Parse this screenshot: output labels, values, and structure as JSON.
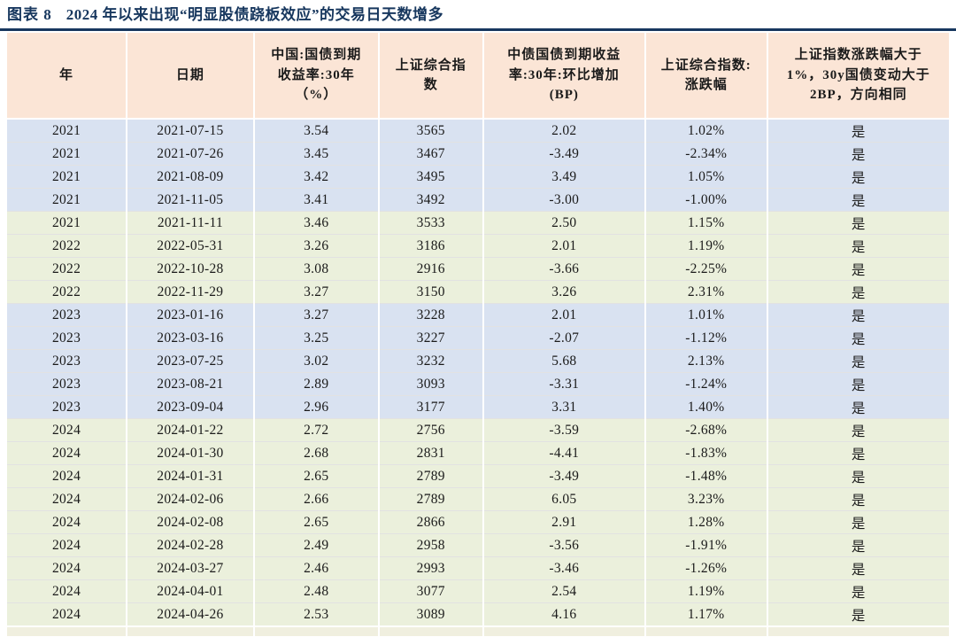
{
  "title": {
    "figure_label": "图表 8",
    "text": "2024 年以来出现“明显股债跷板效应”的交易日天数增多"
  },
  "colors": {
    "title_navy": "#17375e",
    "header_bg": "#fbe5d6",
    "row_blue": "#d9e2f1",
    "row_green": "#ebf0dc",
    "text": "#1a1a1a"
  },
  "table": {
    "columns": [
      {
        "label": "年"
      },
      {
        "label": "日期"
      },
      {
        "label": "中国:国债到期\n收益率:30年\n（%）"
      },
      {
        "label": "上证综合指\n数"
      },
      {
        "label": "中债国债到期收益\n率:30年:环比增加\n(BP)"
      },
      {
        "label": "上证综合指数:\n涨跌幅"
      },
      {
        "label": "上证指数涨跌幅大于\n1%，30y国债变动大于\n2BP，方向相同"
      }
    ],
    "rows": [
      {
        "tone": "blue",
        "cells": [
          "2021",
          "2021-07-15",
          "3.54",
          "3565",
          "2.02",
          "1.02%",
          "是"
        ]
      },
      {
        "tone": "blue",
        "cells": [
          "2021",
          "2021-07-26",
          "3.45",
          "3467",
          "-3.49",
          "-2.34%",
          "是"
        ]
      },
      {
        "tone": "blue",
        "cells": [
          "2021",
          "2021-08-09",
          "3.42",
          "3495",
          "3.49",
          "1.05%",
          "是"
        ]
      },
      {
        "tone": "blue",
        "cells": [
          "2021",
          "2021-11-05",
          "3.41",
          "3492",
          "-3.00",
          "-1.00%",
          "是"
        ]
      },
      {
        "tone": "green",
        "cells": [
          "2021",
          "2021-11-11",
          "3.46",
          "3533",
          "2.50",
          "1.15%",
          "是"
        ]
      },
      {
        "tone": "green",
        "cells": [
          "2022",
          "2022-05-31",
          "3.26",
          "3186",
          "2.01",
          "1.19%",
          "是"
        ]
      },
      {
        "tone": "green",
        "cells": [
          "2022",
          "2022-10-28",
          "3.08",
          "2916",
          "-3.66",
          "-2.25%",
          "是"
        ]
      },
      {
        "tone": "green",
        "cells": [
          "2022",
          "2022-11-29",
          "3.27",
          "3150",
          "3.26",
          "2.31%",
          "是"
        ]
      },
      {
        "tone": "blue",
        "cells": [
          "2023",
          "2023-01-16",
          "3.27",
          "3228",
          "2.01",
          "1.01%",
          "是"
        ]
      },
      {
        "tone": "blue",
        "cells": [
          "2023",
          "2023-03-16",
          "3.25",
          "3227",
          "-2.07",
          "-1.12%",
          "是"
        ]
      },
      {
        "tone": "blue",
        "cells": [
          "2023",
          "2023-07-25",
          "3.02",
          "3232",
          "5.68",
          "2.13%",
          "是"
        ]
      },
      {
        "tone": "blue",
        "cells": [
          "2023",
          "2023-08-21",
          "2.89",
          "3093",
          "-3.31",
          "-1.24%",
          "是"
        ]
      },
      {
        "tone": "blue",
        "cells": [
          "2023",
          "2023-09-04",
          "2.96",
          "3177",
          "3.31",
          "1.40%",
          "是"
        ]
      },
      {
        "tone": "green",
        "cells": [
          "2024",
          "2024-01-22",
          "2.72",
          "2756",
          "-3.59",
          "-2.68%",
          "是"
        ]
      },
      {
        "tone": "green",
        "cells": [
          "2024",
          "2024-01-30",
          "2.68",
          "2831",
          "-4.41",
          "-1.83%",
          "是"
        ]
      },
      {
        "tone": "green",
        "cells": [
          "2024",
          "2024-01-31",
          "2.65",
          "2789",
          "-3.49",
          "-1.48%",
          "是"
        ]
      },
      {
        "tone": "green",
        "cells": [
          "2024",
          "2024-02-06",
          "2.66",
          "2789",
          "6.05",
          "3.23%",
          "是"
        ]
      },
      {
        "tone": "green",
        "cells": [
          "2024",
          "2024-02-08",
          "2.65",
          "2866",
          "2.91",
          "1.28%",
          "是"
        ]
      },
      {
        "tone": "green",
        "cells": [
          "2024",
          "2024-02-28",
          "2.49",
          "2958",
          "-3.56",
          "-1.91%",
          "是"
        ]
      },
      {
        "tone": "green",
        "cells": [
          "2024",
          "2024-03-27",
          "2.46",
          "2993",
          "-3.46",
          "-1.26%",
          "是"
        ]
      },
      {
        "tone": "green",
        "cells": [
          "2024",
          "2024-04-01",
          "2.48",
          "3077",
          "2.54",
          "1.19%",
          "是"
        ]
      },
      {
        "tone": "green",
        "cells": [
          "2024",
          "2024-04-26",
          "2.53",
          "3089",
          "4.16",
          "1.17%",
          "是"
        ]
      }
    ]
  },
  "chart_data": {
    "type": "table",
    "title": "图表 8 2024 年以来出现“明显股债跷板效应”的交易日天数增多",
    "columns": [
      "年",
      "日期",
      "中国:国债到期收益率:30年（%）",
      "上证综合指数",
      "中债国债到期收益率:30年:环比增加(BP)",
      "上证综合指数:涨跌幅",
      "上证指数涨跌幅大于1%，30y国债变动大于2BP，方向相同"
    ],
    "rows": [
      [
        "2021",
        "2021-07-15",
        3.54,
        3565,
        2.02,
        "1.02%",
        "是"
      ],
      [
        "2021",
        "2021-07-26",
        3.45,
        3467,
        -3.49,
        "-2.34%",
        "是"
      ],
      [
        "2021",
        "2021-08-09",
        3.42,
        3495,
        3.49,
        "1.05%",
        "是"
      ],
      [
        "2021",
        "2021-11-05",
        3.41,
        3492,
        -3.0,
        "-1.00%",
        "是"
      ],
      [
        "2021",
        "2021-11-11",
        3.46,
        3533,
        2.5,
        "1.15%",
        "是"
      ],
      [
        "2022",
        "2022-05-31",
        3.26,
        3186,
        2.01,
        "1.19%",
        "是"
      ],
      [
        "2022",
        "2022-10-28",
        3.08,
        2916,
        -3.66,
        "-2.25%",
        "是"
      ],
      [
        "2022",
        "2022-11-29",
        3.27,
        3150,
        3.26,
        "2.31%",
        "是"
      ],
      [
        "2023",
        "2023-01-16",
        3.27,
        3228,
        2.01,
        "1.01%",
        "是"
      ],
      [
        "2023",
        "2023-03-16",
        3.25,
        3227,
        -2.07,
        "-1.12%",
        "是"
      ],
      [
        "2023",
        "2023-07-25",
        3.02,
        3232,
        5.68,
        "2.13%",
        "是"
      ],
      [
        "2023",
        "2023-08-21",
        2.89,
        3093,
        -3.31,
        "-1.24%",
        "是"
      ],
      [
        "2023",
        "2023-09-04",
        2.96,
        3177,
        3.31,
        "1.40%",
        "是"
      ],
      [
        "2024",
        "2024-01-22",
        2.72,
        2756,
        -3.59,
        "-2.68%",
        "是"
      ],
      [
        "2024",
        "2024-01-30",
        2.68,
        2831,
        -4.41,
        "-1.83%",
        "是"
      ],
      [
        "2024",
        "2024-01-31",
        2.65,
        2789,
        -3.49,
        "-1.48%",
        "是"
      ],
      [
        "2024",
        "2024-02-06",
        2.66,
        2789,
        6.05,
        "3.23%",
        "是"
      ],
      [
        "2024",
        "2024-02-08",
        2.65,
        2866,
        2.91,
        "1.28%",
        "是"
      ],
      [
        "2024",
        "2024-02-28",
        2.49,
        2958,
        -3.56,
        "-1.91%",
        "是"
      ],
      [
        "2024",
        "2024-03-27",
        2.46,
        2993,
        -3.46,
        "-1.26%",
        "是"
      ],
      [
        "2024",
        "2024-04-01",
        2.48,
        3077,
        2.54,
        "1.19%",
        "是"
      ],
      [
        "2024",
        "2024-04-26",
        2.53,
        3089,
        4.16,
        "1.17%",
        "是"
      ]
    ]
  }
}
